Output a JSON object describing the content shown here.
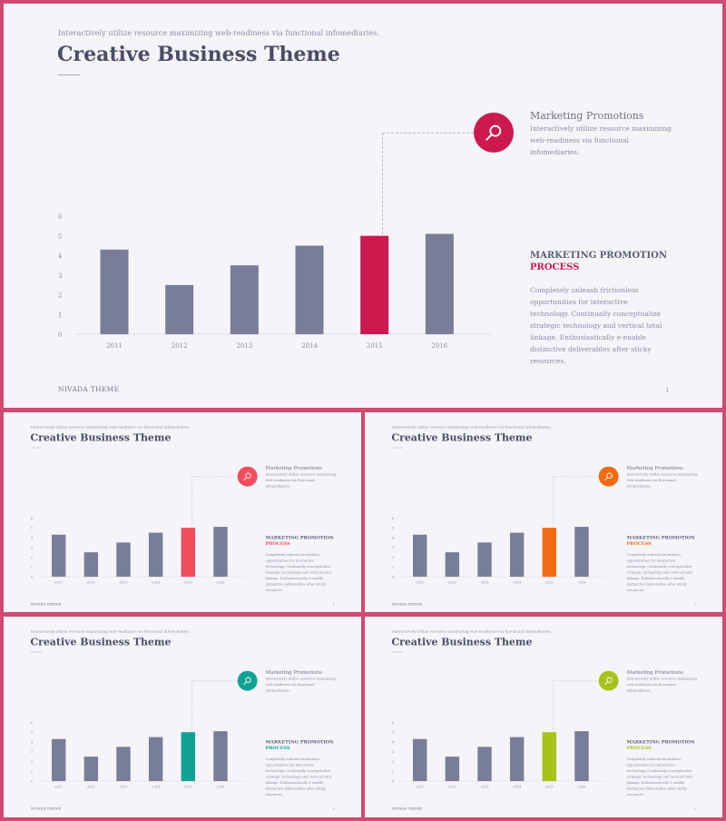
{
  "slide": {
    "subtitle": "Interactively utilize resource maximizing web-readiness via functional infomediaries.",
    "title": "Creative Business Theme",
    "promo_title": "Marketing Promotions",
    "promo_desc": "Interactively utilize resource maximizing web-readiness via functional infomediaries.",
    "process_line1": "MARKETING PROMOTION",
    "process_line2": "PROCESS",
    "process_desc": "Completely unleash frictionless opportunities for interactive technology. Continually conceptualize strategic technology and vertical total linkage. Enthusiastically e-enable distinctive deliverables after sticky resources.",
    "footer_brand": "NIVADA THEME",
    "footer_page": "1",
    "icon": "magnifier-icon",
    "bar_color": "#7a7d97"
  },
  "variants": [
    {
      "id": "red",
      "accent": "#cc1a4f",
      "highlight_bar": "#cc1a4f"
    },
    {
      "id": "coral",
      "accent": "#f04d5e",
      "highlight_bar": "#f04d5e"
    },
    {
      "id": "orange",
      "accent": "#f26a12",
      "highlight_bar": "#f26a12"
    },
    {
      "id": "teal",
      "accent": "#12a293",
      "highlight_bar": "#12a293"
    },
    {
      "id": "lime",
      "accent": "#a9c21b",
      "highlight_bar": "#a9c21b"
    }
  ],
  "chart_data": {
    "type": "bar",
    "categories": [
      "2011",
      "2012",
      "2013",
      "2014",
      "2015",
      "2016"
    ],
    "values": [
      4.3,
      2.5,
      3.5,
      4.5,
      5.0,
      5.1
    ],
    "highlight_index": 4,
    "yticks": [
      "0",
      "1",
      "2",
      "3",
      "4",
      "5",
      "6"
    ],
    "ylim": [
      0,
      6
    ],
    "grid": false
  }
}
